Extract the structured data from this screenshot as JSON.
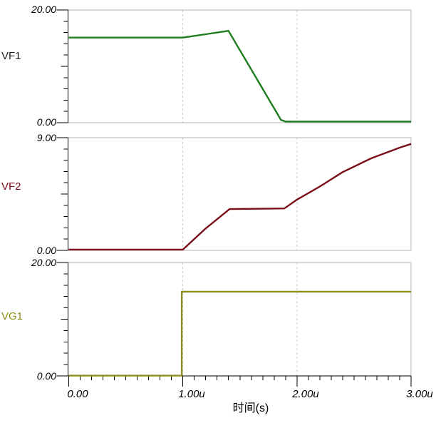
{
  "colors": {
    "vf1": "#1e7d1e",
    "vf2": "#7a0f19",
    "vg1": "#8f8e1d",
    "vf1_label": "#1c1c1c",
    "vf2_label": "#7a0f19",
    "vg1_label": "#8f8e1d",
    "frame": "#b4b4b4",
    "grid_dashed": "#cccccc",
    "axis": "#000000",
    "background": "#ffffff"
  },
  "x_axis": {
    "title": "时间(s)",
    "tick_labels": [
      "0.00",
      "1.00u",
      "2.00u",
      "3.00u"
    ],
    "tick_values_us": [
      0,
      1,
      2,
      3
    ],
    "minor_ticks_per_major": 10,
    "dashed_gridlines_us": [
      1,
      2
    ],
    "range_us": [
      0,
      3
    ]
  },
  "plots": [
    {
      "label": "VF1",
      "label_color_key": "vf1_label",
      "y_max_label": "20.00",
      "y_min_label": "0.00",
      "ylim": [
        0,
        20
      ]
    },
    {
      "label": "VF2",
      "label_color_key": "vf2_label",
      "y_max_label": "9.00",
      "y_min_label": "0.00",
      "ylim": [
        0,
        9
      ]
    },
    {
      "label": "VG1",
      "label_color_key": "vg1_label",
      "y_max_label": "20.00",
      "y_min_label": "0.00",
      "ylim": [
        0,
        20
      ]
    }
  ],
  "chart_data": [
    {
      "type": "line",
      "name": "VF1",
      "color_key": "vf1",
      "x_unit": "us",
      "y_unit": "V",
      "ylim": [
        0,
        20
      ],
      "points": [
        [
          0,
          15.1
        ],
        [
          1.0,
          15.1
        ],
        [
          1.2,
          15.7
        ],
        [
          1.4,
          16.3
        ],
        [
          1.86,
          0.5
        ],
        [
          1.9,
          0.2
        ],
        [
          3.0,
          0.2
        ]
      ]
    },
    {
      "type": "line",
      "name": "VF2",
      "color_key": "vf2",
      "x_unit": "us",
      "y_unit": "V",
      "ylim": [
        0,
        9
      ],
      "points": [
        [
          0,
          0.06
        ],
        [
          1.0,
          0.06
        ],
        [
          1.2,
          1.75
        ],
        [
          1.41,
          3.3
        ],
        [
          1.89,
          3.35
        ],
        [
          2.0,
          4.05
        ],
        [
          2.2,
          5.1
        ],
        [
          2.4,
          6.25
        ],
        [
          2.65,
          7.35
        ],
        [
          2.9,
          8.2
        ],
        [
          3.0,
          8.5
        ]
      ]
    },
    {
      "type": "line",
      "name": "VG1",
      "color_key": "vg1",
      "x_unit": "us",
      "y_unit": "V",
      "ylim": [
        0,
        20
      ],
      "points": [
        [
          0,
          0.05
        ],
        [
          0.99,
          0.05
        ],
        [
          0.99,
          14.85
        ],
        [
          3.0,
          14.85
        ]
      ]
    }
  ]
}
